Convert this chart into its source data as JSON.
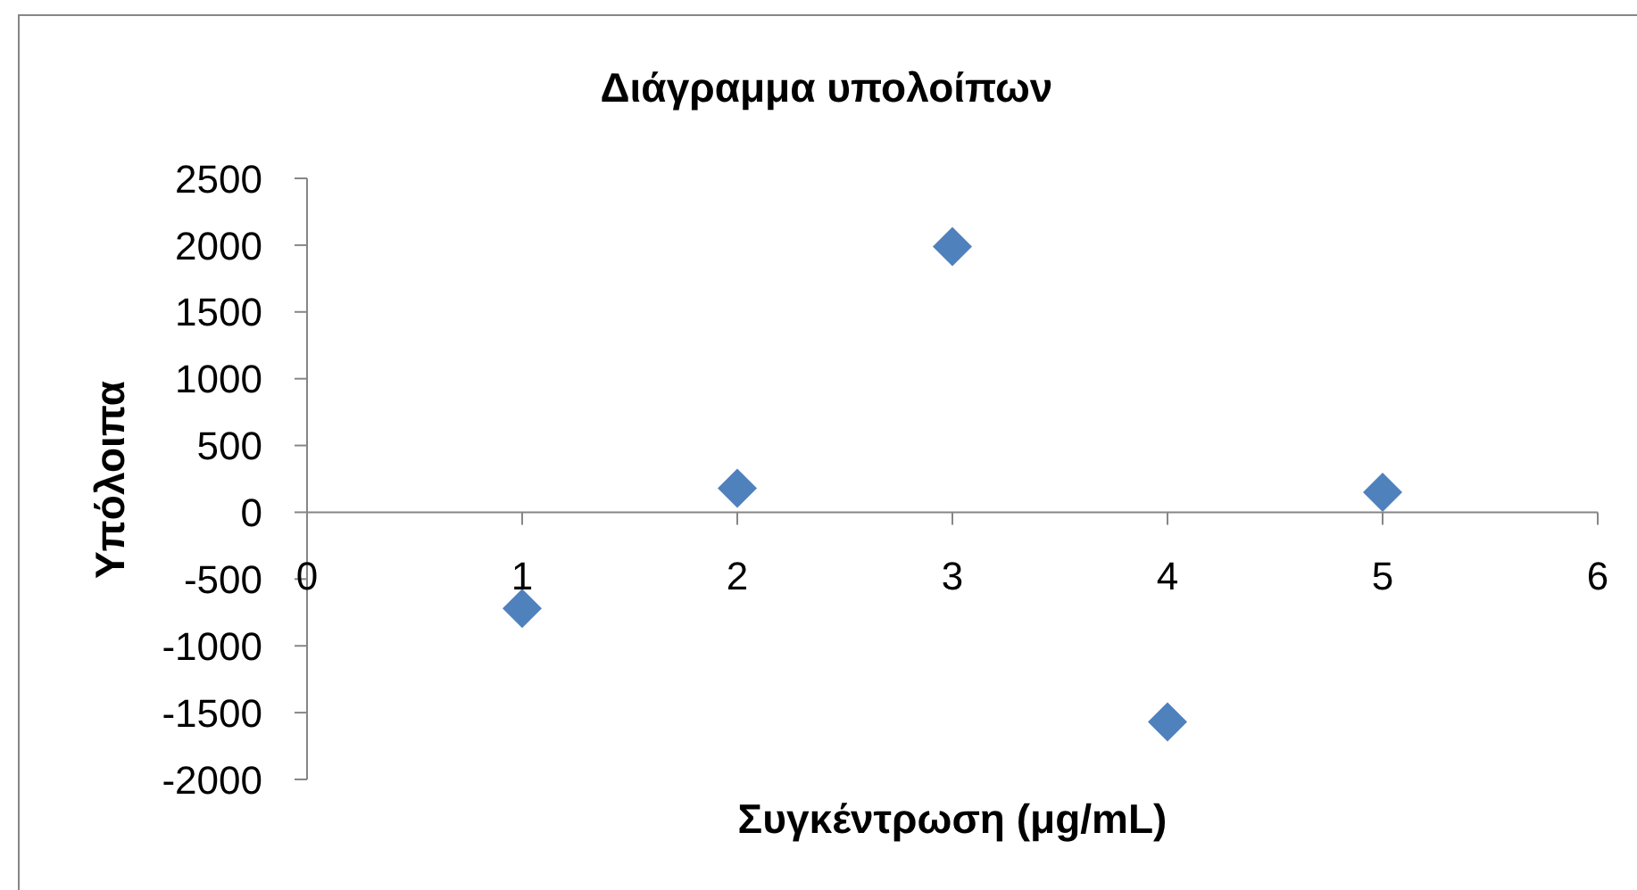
{
  "chart_data": {
    "type": "scatter",
    "title": "Διάγραμμα υπολοίπων",
    "xlabel": "Συγκέντρωση (μg/mL)",
    "ylabel": "Υπόλοιπα",
    "x": [
      1,
      2,
      3,
      4,
      5
    ],
    "series": [
      {
        "color": "#4f81bd",
        "values": [
          -720,
          180,
          1990,
          -1570,
          150
        ]
      }
    ],
    "xlim": [
      0,
      6
    ],
    "xticks": [
      0,
      1,
      2,
      3,
      4,
      5,
      6
    ],
    "ylim": [
      -2000,
      2500
    ],
    "yticks": [
      -2000,
      -1500,
      -1000,
      -500,
      0,
      500,
      1000,
      1500,
      2000,
      2500
    ],
    "grid": false,
    "legend": false,
    "marker": "diamond"
  }
}
